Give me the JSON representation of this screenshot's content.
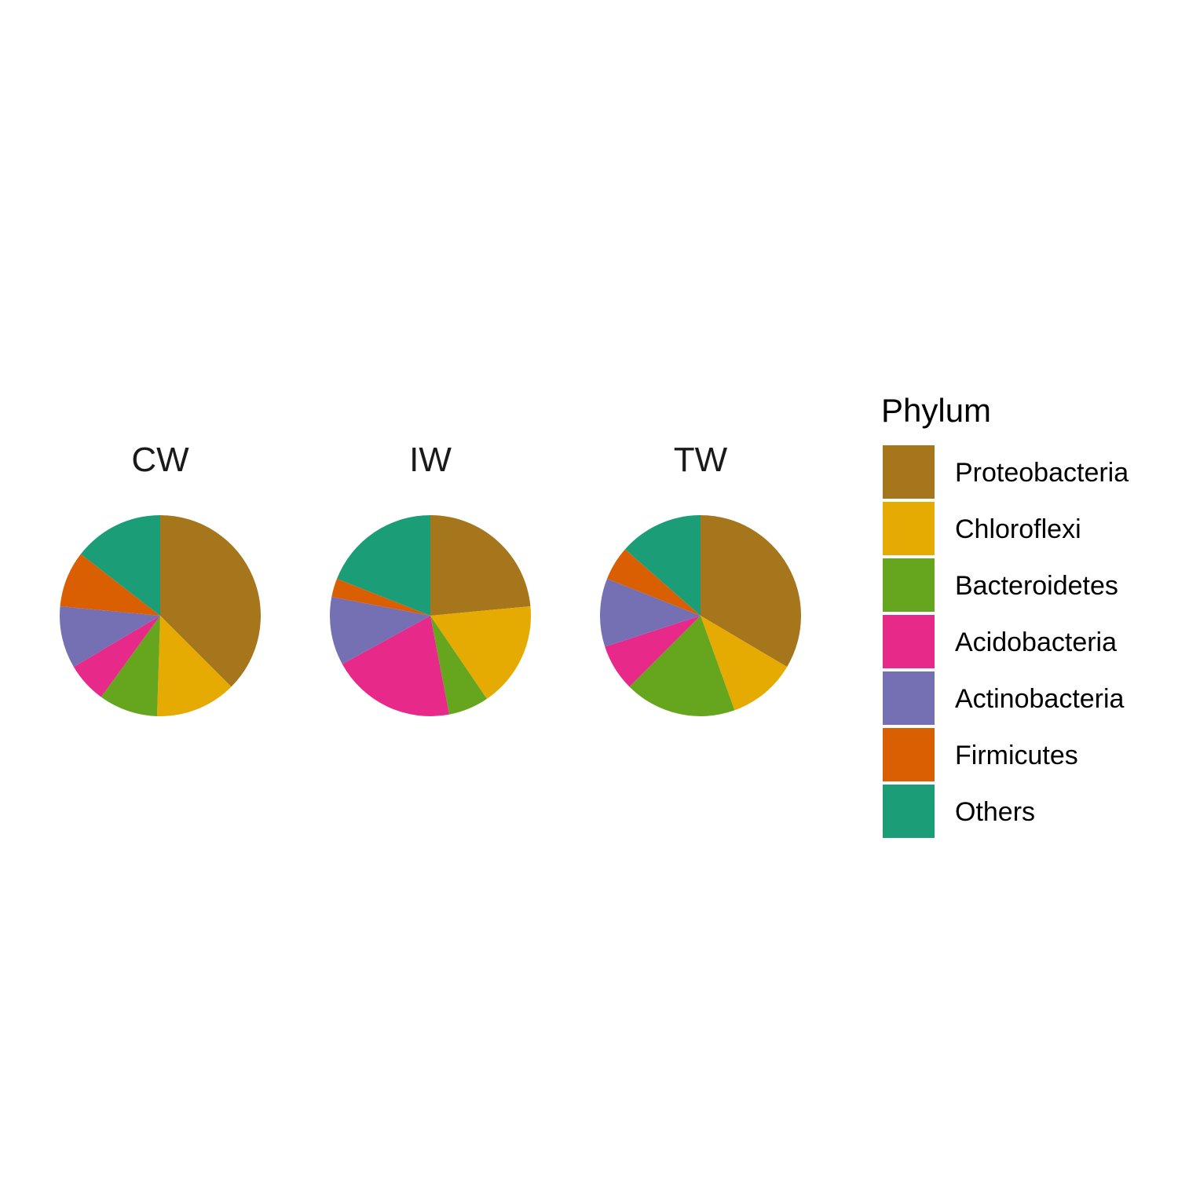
{
  "chart_data": {
    "type": "pie",
    "categories": [
      "Proteobacteria",
      "Chloroflexi",
      "Bacteroidetes",
      "Acidobacteria",
      "Actinobacteria",
      "Firmicutes",
      "Others"
    ],
    "colors": [
      "#A6761D",
      "#E6AB02",
      "#66A61E",
      "#E7298A",
      "#7570B3",
      "#D95F02",
      "#1B9E77"
    ],
    "legend": {
      "title": "Phylum",
      "position": "right"
    },
    "facets": [
      {
        "name": "CW",
        "values": [
          37.5,
          13.0,
          9.5,
          6.5,
          10.0,
          9.0,
          14.5
        ]
      },
      {
        "name": "IW",
        "values": [
          23.5,
          17.0,
          6.5,
          20.0,
          11.0,
          3.0,
          19.0
        ]
      },
      {
        "name": "TW",
        "values": [
          33.5,
          11.0,
          18.0,
          7.5,
          11.0,
          5.5,
          13.5
        ]
      }
    ]
  }
}
